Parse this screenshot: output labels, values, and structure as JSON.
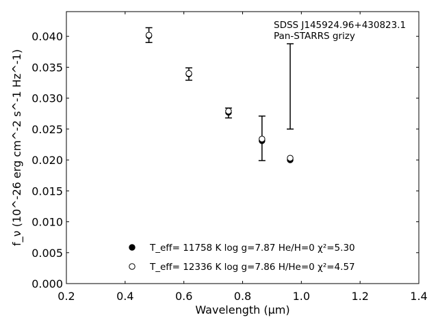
{
  "chart_data": {
    "type": "scatter",
    "title": "",
    "xlabel": "Wavelength (μm)",
    "ylabel": "f_ν (10^-26 erg cm^-2 s^-1 Hz^-1)",
    "xlim": [
      0.2,
      1.4
    ],
    "ylim": [
      0.0,
      0.044
    ],
    "x_ticks": [
      0.2,
      0.4,
      0.6,
      0.8,
      1.0,
      1.2,
      1.4
    ],
    "x_tick_labels": [
      "0.2",
      "0.4",
      "0.6",
      "0.8",
      "1.0",
      "1.2",
      "1.4"
    ],
    "y_ticks": [
      0.0,
      0.005,
      0.01,
      0.015,
      0.02,
      0.025,
      0.03,
      0.035,
      0.04
    ],
    "y_tick_labels": [
      "0.000",
      "0.005",
      "0.010",
      "0.015",
      "0.020",
      "0.025",
      "0.030",
      "0.035",
      "0.040"
    ],
    "grid": false,
    "legend_position": "bottom-center",
    "annotations": [
      "SDSS J145924.96+430823.1",
      "Pan-STARRS grizy"
    ],
    "observed": {
      "x": [
        0.481,
        0.617,
        0.752,
        0.866,
        0.962
      ],
      "y": [
        0.0402,
        0.0339,
        0.0276,
        0.0235,
        0.0319
      ],
      "yerr": [
        0.0012,
        0.001,
        0.0008,
        0.0036,
        0.0069
      ]
    },
    "series": [
      {
        "name": "T_eff= 11758 K  log g=7.87  He/H=0  χ²=5.30",
        "marker": "filled-circle",
        "x": [
          0.481,
          0.617,
          0.752,
          0.866,
          0.962
        ],
        "y": [
          0.0401,
          0.0339,
          0.0277,
          0.0231,
          0.02
        ]
      },
      {
        "name": "T_eff= 12336 K  log g=7.86  H/He=0  χ²=4.57",
        "marker": "open-circle",
        "x": [
          0.481,
          0.617,
          0.752,
          0.866,
          0.962
        ],
        "y": [
          0.0402,
          0.034,
          0.0279,
          0.0234,
          0.0203
        ]
      }
    ],
    "colors": {
      "markers": "#000000",
      "errorbars": "#000000"
    }
  }
}
